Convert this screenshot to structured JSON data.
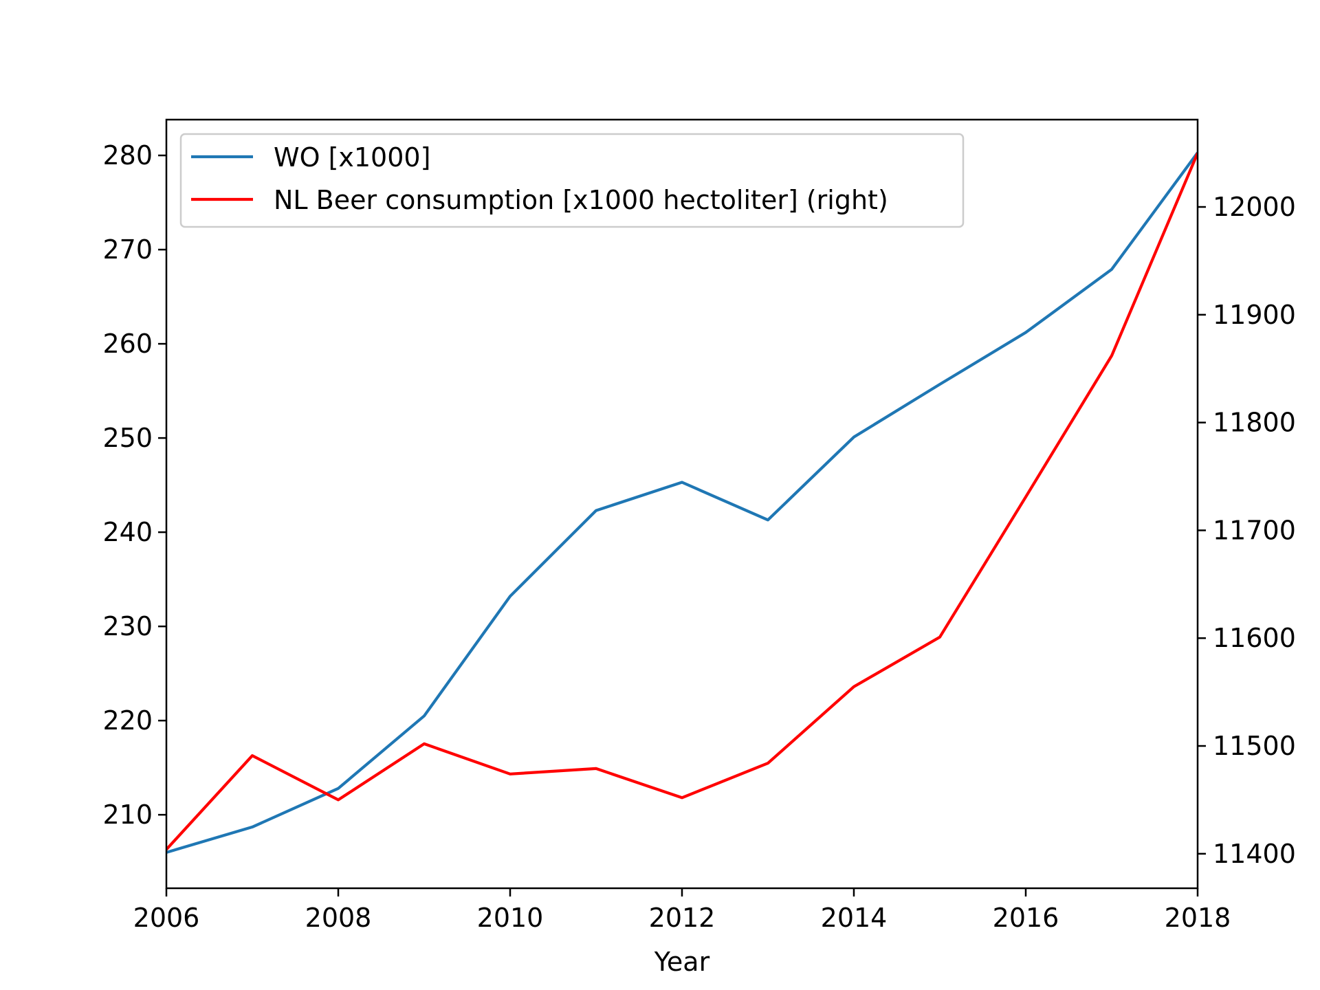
{
  "chart_data": {
    "type": "line",
    "xlabel": "Year",
    "x": [
      2006,
      2007,
      2008,
      2009,
      2010,
      2011,
      2012,
      2013,
      2014,
      2015,
      2016,
      2017,
      2018
    ],
    "xlim": [
      2006,
      2018
    ],
    "x_ticks": [
      "2006",
      "2008",
      "2010",
      "2012",
      "2014",
      "2016",
      "2018"
    ],
    "y_left": {
      "ylim": [
        202.2,
        283.8
      ],
      "ticks": [
        "210",
        "220",
        "230",
        "240",
        "250",
        "260",
        "270",
        "280"
      ]
    },
    "y_right": {
      "ylim": [
        11368,
        12081
      ],
      "ticks": [
        "11400",
        "11500",
        "11600",
        "11700",
        "11800",
        "11900",
        "12000"
      ]
    },
    "series": [
      {
        "name": "WO [x1000]",
        "axis": "left",
        "color": "#1f77b4",
        "values": [
          206.0,
          208.7,
          212.8,
          220.5,
          233.2,
          242.3,
          245.3,
          241.3,
          250.1,
          255.7,
          261.2,
          267.9,
          280.3
        ]
      },
      {
        "name": "NL Beer consumption [x1000 hectoliter] (right)",
        "axis": "right",
        "color": "#ff0000",
        "values": [
          11404,
          11491,
          11450,
          11502,
          11474,
          11479,
          11452,
          11484,
          11555,
          11601,
          11731,
          11862,
          12050
        ]
      }
    ],
    "legend": "upper-left",
    "grid": false
  }
}
